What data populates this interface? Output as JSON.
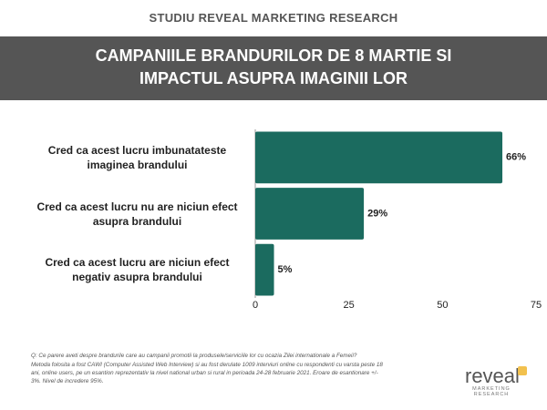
{
  "header": "STUDIU REVEAL MARKETING RESEARCH",
  "chart_data": {
    "type": "bar",
    "orientation": "horizontal",
    "title": "CAMPANIILE BRANDURILOR DE 8 MARTIE SI IMPACTUL ASUPRA IMAGINII LOR",
    "categories": [
      "Cred ca acest lucru imbunatateste imaginea brandului",
      "Cred ca acest lucru nu are niciun efect asupra brandului",
      "Cred ca acest lucru are niciun efect negativ asupra brandului"
    ],
    "values": [
      66,
      29,
      5
    ],
    "value_labels": [
      "66%",
      "29%",
      "5%"
    ],
    "color": "#1b6b5f",
    "xlim": [
      0,
      75
    ],
    "xticks": [
      0,
      25,
      50,
      75
    ],
    "grid": false
  },
  "footnote": {
    "question": "Q: Ce parere aveti despre brandurile care au campanii promotii la produsele/serviciile lor cu ocazia Zilei internationale a Femeii?",
    "method": "Metoda folosita a fost CAWI (Computer Assisted Web Interview) si au fost derulate 1009 interviuri online cu respondenti cu varsta peste 18 ani, online users, pe un esantion reprezentativ la nivel national urban si rural in perioada 24-28 februarie 2021. Eroare de esantionare +/- 3%. Nivel de incredere 95%."
  },
  "logo": {
    "name": "reveal",
    "tagline": "MARKETING RESEARCH"
  }
}
